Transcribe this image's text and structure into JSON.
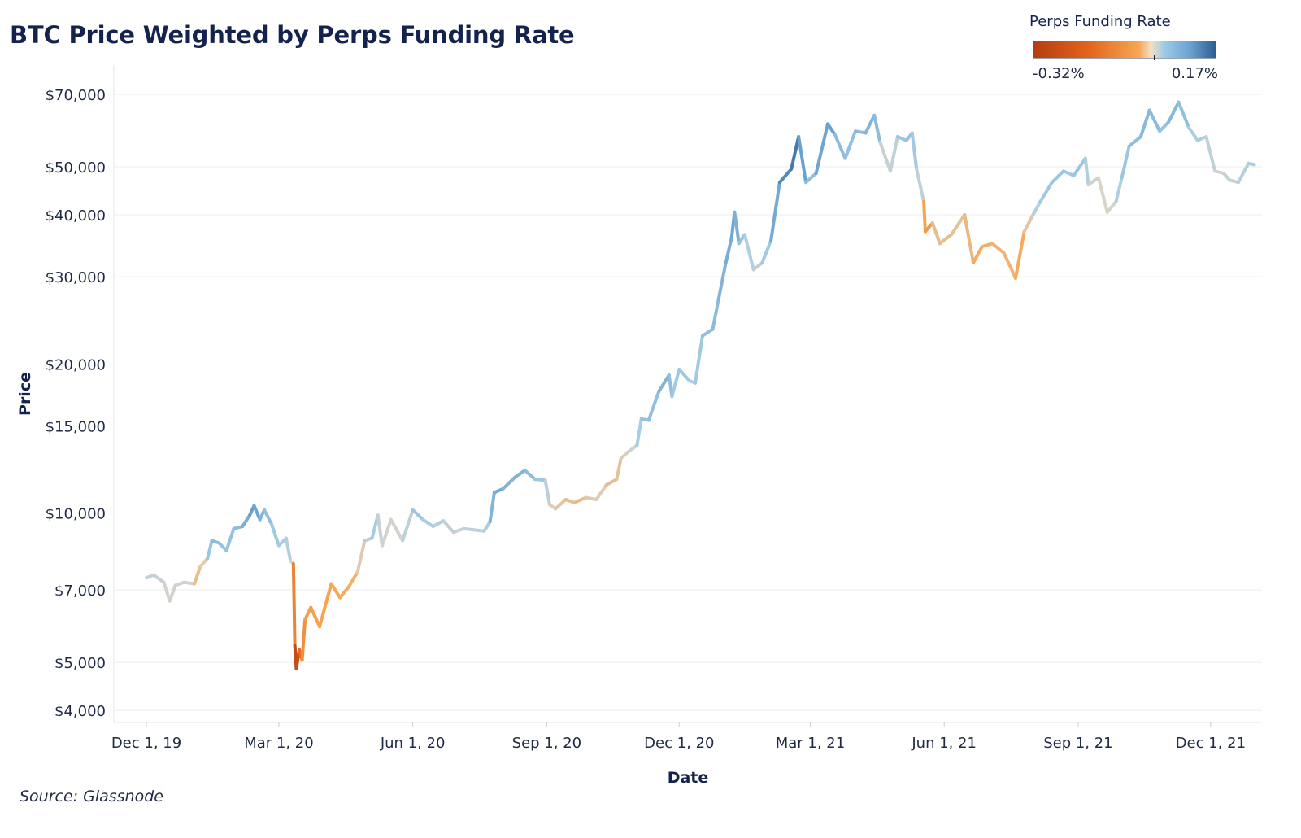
{
  "title": "BTC Price Weighted by Perps Funding Rate",
  "source": "Source: Glassnode",
  "legend": {
    "title": "Perps Funding Rate",
    "min_label": "-0.32%",
    "max_label": "0.17%",
    "min": -0.32,
    "max": 0.17,
    "colors": [
      "#b53d12",
      "#e1651c",
      "#f7a653",
      "#f3e0c6",
      "#9ccae6",
      "#6aa2cf",
      "#2d5c91"
    ]
  },
  "chart_data": {
    "type": "line",
    "title": "BTC Price Weighted by Perps Funding Rate",
    "xlabel": "Date",
    "ylabel": "Price",
    "y_scale": "log",
    "ylim": [
      3800,
      90000
    ],
    "xlim": [
      "2019-12-01",
      "2022-01-31"
    ],
    "grid": "horizontal",
    "legend_position": "top-right",
    "x_ticks": [
      {
        "date": "2019-12-01",
        "label": "Dec 1, 19"
      },
      {
        "date": "2020-03-01",
        "label": "Mar 1, 20"
      },
      {
        "date": "2020-06-01",
        "label": "Jun 1, 20"
      },
      {
        "date": "2020-09-01",
        "label": "Sep 1, 20"
      },
      {
        "date": "2020-12-01",
        "label": "Dec 1, 20"
      },
      {
        "date": "2021-03-01",
        "label": "Mar 1, 21"
      },
      {
        "date": "2021-06-01",
        "label": "Jun 1, 21"
      },
      {
        "date": "2021-09-01",
        "label": "Sep 1, 21"
      },
      {
        "date": "2021-12-01",
        "label": "Dec 1, 21"
      }
    ],
    "y_ticks": [
      {
        "value": 4000,
        "label": "$4,000"
      },
      {
        "value": 5000,
        "label": "$5,000"
      },
      {
        "value": 7000,
        "label": "$7,000"
      },
      {
        "value": 10000,
        "label": "$10,000"
      },
      {
        "value": 15000,
        "label": "$15,000"
      },
      {
        "value": 20000,
        "label": "$20,000"
      },
      {
        "value": 30000,
        "label": "$30,000"
      },
      {
        "value": 40000,
        "label": "$40,000"
      },
      {
        "value": 50000,
        "label": "$50,000"
      },
      {
        "value": 70000,
        "label": "$70,000"
      }
    ],
    "series": [
      {
        "points": [
          {
            "date": "2019-12-01",
            "price": 7400,
            "funding": 0.02
          },
          {
            "date": "2019-12-06",
            "price": 7500,
            "funding": 0.02
          },
          {
            "date": "2019-12-13",
            "price": 7250,
            "funding": 0.01
          },
          {
            "date": "2019-12-17",
            "price": 6650,
            "funding": 0.0
          },
          {
            "date": "2019-12-21",
            "price": 7150,
            "funding": 0.01
          },
          {
            "date": "2019-12-27",
            "price": 7250,
            "funding": 0.01
          },
          {
            "date": "2020-01-03",
            "price": 7200,
            "funding": 0.0
          },
          {
            "date": "2020-01-07",
            "price": 7800,
            "funding": -0.05
          },
          {
            "date": "2020-01-12",
            "price": 8100,
            "funding": 0.03
          },
          {
            "date": "2020-01-15",
            "price": 8800,
            "funding": 0.07
          },
          {
            "date": "2020-01-20",
            "price": 8700,
            "funding": 0.06
          },
          {
            "date": "2020-01-25",
            "price": 8400,
            "funding": 0.05
          },
          {
            "date": "2020-01-30",
            "price": 9300,
            "funding": 0.06
          },
          {
            "date": "2020-02-05",
            "price": 9400,
            "funding": 0.07
          },
          {
            "date": "2020-02-10",
            "price": 9900,
            "funding": 0.1
          },
          {
            "date": "2020-02-13",
            "price": 10350,
            "funding": 0.11
          },
          {
            "date": "2020-02-17",
            "price": 9700,
            "funding": 0.08
          },
          {
            "date": "2020-02-20",
            "price": 10150,
            "funding": 0.07
          },
          {
            "date": "2020-02-25",
            "price": 9500,
            "funding": 0.05
          },
          {
            "date": "2020-03-01",
            "price": 8600,
            "funding": 0.04
          },
          {
            "date": "2020-03-06",
            "price": 8900,
            "funding": 0.04
          },
          {
            "date": "2020-03-09",
            "price": 8000,
            "funding": 0.02
          },
          {
            "date": "2020-03-11",
            "price": 7900,
            "funding": -0.02
          },
          {
            "date": "2020-03-12",
            "price": 5400,
            "funding": -0.22
          },
          {
            "date": "2020-03-13",
            "price": 4850,
            "funding": -0.32
          },
          {
            "date": "2020-03-15",
            "price": 5300,
            "funding": -0.2
          },
          {
            "date": "2020-03-17",
            "price": 5050,
            "funding": -0.12
          },
          {
            "date": "2020-03-19",
            "price": 6100,
            "funding": -0.07
          },
          {
            "date": "2020-03-23",
            "price": 6450,
            "funding": -0.06
          },
          {
            "date": "2020-03-29",
            "price": 5900,
            "funding": -0.06
          },
          {
            "date": "2020-04-06",
            "price": 7200,
            "funding": -0.05
          },
          {
            "date": "2020-04-12",
            "price": 6750,
            "funding": -0.05
          },
          {
            "date": "2020-04-18",
            "price": 7100,
            "funding": -0.04
          },
          {
            "date": "2020-04-24",
            "price": 7600,
            "funding": -0.04
          },
          {
            "date": "2020-04-29",
            "price": 8800,
            "funding": 0.02
          },
          {
            "date": "2020-05-04",
            "price": 8900,
            "funding": 0.03
          },
          {
            "date": "2020-05-08",
            "price": 9900,
            "funding": 0.05
          },
          {
            "date": "2020-05-11",
            "price": 8600,
            "funding": -0.02
          },
          {
            "date": "2020-05-17",
            "price": 9700,
            "funding": 0.03
          },
          {
            "date": "2020-05-25",
            "price": 8800,
            "funding": -0.02
          },
          {
            "date": "2020-06-01",
            "price": 10150,
            "funding": 0.06
          },
          {
            "date": "2020-06-08",
            "price": 9700,
            "funding": 0.04
          },
          {
            "date": "2020-06-15",
            "price": 9400,
            "funding": 0.03
          },
          {
            "date": "2020-06-22",
            "price": 9650,
            "funding": 0.03
          },
          {
            "date": "2020-06-29",
            "price": 9150,
            "funding": 0.01
          },
          {
            "date": "2020-07-06",
            "price": 9300,
            "funding": 0.02
          },
          {
            "date": "2020-07-13",
            "price": 9250,
            "funding": 0.02
          },
          {
            "date": "2020-07-20",
            "price": 9200,
            "funding": 0.02
          },
          {
            "date": "2020-07-24",
            "price": 9600,
            "funding": 0.05
          },
          {
            "date": "2020-07-27",
            "price": 11000,
            "funding": 0.1
          },
          {
            "date": "2020-08-02",
            "price": 11200,
            "funding": 0.08
          },
          {
            "date": "2020-08-10",
            "price": 11800,
            "funding": 0.07
          },
          {
            "date": "2020-08-17",
            "price": 12200,
            "funding": 0.08
          },
          {
            "date": "2020-08-24",
            "price": 11700,
            "funding": 0.05
          },
          {
            "date": "2020-08-31",
            "price": 11650,
            "funding": 0.05
          },
          {
            "date": "2020-09-03",
            "price": 10400,
            "funding": 0.0
          },
          {
            "date": "2020-09-07",
            "price": 10200,
            "funding": -0.01
          },
          {
            "date": "2020-09-14",
            "price": 10650,
            "funding": -0.02
          },
          {
            "date": "2020-09-20",
            "price": 10500,
            "funding": -0.03
          },
          {
            "date": "2020-09-28",
            "price": 10750,
            "funding": -0.02
          },
          {
            "date": "2020-10-05",
            "price": 10650,
            "funding": 0.0
          },
          {
            "date": "2020-10-12",
            "price": 11400,
            "funding": -0.02
          },
          {
            "date": "2020-10-19",
            "price": 11700,
            "funding": -0.03
          },
          {
            "date": "2020-10-22",
            "price": 12900,
            "funding": -0.01
          },
          {
            "date": "2020-10-27",
            "price": 13300,
            "funding": 0.0
          },
          {
            "date": "2020-11-02",
            "price": 13700,
            "funding": 0.02
          },
          {
            "date": "2020-11-05",
            "price": 15500,
            "funding": 0.06
          },
          {
            "date": "2020-11-10",
            "price": 15400,
            "funding": 0.05
          },
          {
            "date": "2020-11-17",
            "price": 17600,
            "funding": 0.07
          },
          {
            "date": "2020-11-24",
            "price": 19000,
            "funding": 0.08
          },
          {
            "date": "2020-11-26",
            "price": 17200,
            "funding": 0.04
          },
          {
            "date": "2020-12-01",
            "price": 19500,
            "funding": 0.05
          },
          {
            "date": "2020-12-08",
            "price": 18500,
            "funding": 0.04
          },
          {
            "date": "2020-12-12",
            "price": 18300,
            "funding": 0.03
          },
          {
            "date": "2020-12-17",
            "price": 22800,
            "funding": 0.06
          },
          {
            "date": "2020-12-24",
            "price": 23500,
            "funding": 0.06
          },
          {
            "date": "2020-12-28",
            "price": 27000,
            "funding": 0.07
          },
          {
            "date": "2021-01-02",
            "price": 32000,
            "funding": 0.08
          },
          {
            "date": "2021-01-06",
            "price": 36000,
            "funding": 0.09
          },
          {
            "date": "2021-01-08",
            "price": 40500,
            "funding": 0.1
          },
          {
            "date": "2021-01-11",
            "price": 35000,
            "funding": 0.06
          },
          {
            "date": "2021-01-15",
            "price": 36500,
            "funding": 0.05
          },
          {
            "date": "2021-01-21",
            "price": 31000,
            "funding": 0.01
          },
          {
            "date": "2021-01-27",
            "price": 32000,
            "funding": 0.03
          },
          {
            "date": "2021-02-02",
            "price": 35500,
            "funding": 0.06
          },
          {
            "date": "2021-02-08",
            "price": 46500,
            "funding": 0.12
          },
          {
            "date": "2021-02-16",
            "price": 49500,
            "funding": 0.13
          },
          {
            "date": "2021-02-21",
            "price": 57500,
            "funding": 0.15
          },
          {
            "date": "2021-02-26",
            "price": 46500,
            "funding": 0.05
          },
          {
            "date": "2021-03-05",
            "price": 48500,
            "funding": 0.07
          },
          {
            "date": "2021-03-13",
            "price": 61000,
            "funding": 0.12
          },
          {
            "date": "2021-03-18",
            "price": 58000,
            "funding": 0.08
          },
          {
            "date": "2021-03-25",
            "price": 52000,
            "funding": 0.05
          },
          {
            "date": "2021-04-01",
            "price": 59000,
            "funding": 0.07
          },
          {
            "date": "2021-04-08",
            "price": 58500,
            "funding": 0.06
          },
          {
            "date": "2021-04-14",
            "price": 63500,
            "funding": 0.09
          },
          {
            "date": "2021-04-18",
            "price": 56000,
            "funding": 0.04
          },
          {
            "date": "2021-04-25",
            "price": 49000,
            "funding": -0.01
          },
          {
            "date": "2021-04-30",
            "price": 57500,
            "funding": 0.05
          },
          {
            "date": "2021-05-06",
            "price": 56500,
            "funding": 0.05
          },
          {
            "date": "2021-05-10",
            "price": 58500,
            "funding": 0.06
          },
          {
            "date": "2021-05-13",
            "price": 49500,
            "funding": 0.03
          },
          {
            "date": "2021-05-18",
            "price": 42500,
            "funding": 0.01
          },
          {
            "date": "2021-05-19",
            "price": 37000,
            "funding": -0.12
          },
          {
            "date": "2021-05-24",
            "price": 38500,
            "funding": -0.03
          },
          {
            "date": "2021-05-29",
            "price": 35000,
            "funding": -0.02
          },
          {
            "date": "2021-06-06",
            "price": 36500,
            "funding": -0.03
          },
          {
            "date": "2021-06-15",
            "price": 40000,
            "funding": -0.01
          },
          {
            "date": "2021-06-21",
            "price": 32000,
            "funding": -0.05
          },
          {
            "date": "2021-06-27",
            "price": 34500,
            "funding": -0.04
          },
          {
            "date": "2021-07-04",
            "price": 35000,
            "funding": -0.04
          },
          {
            "date": "2021-07-12",
            "price": 33500,
            "funding": -0.03
          },
          {
            "date": "2021-07-20",
            "price": 29800,
            "funding": -0.04
          },
          {
            "date": "2021-07-26",
            "price": 37000,
            "funding": -0.05
          },
          {
            "date": "2021-08-01",
            "price": 40000,
            "funding": 0.02
          },
          {
            "date": "2021-08-06",
            "price": 42500,
            "funding": 0.04
          },
          {
            "date": "2021-08-14",
            "price": 46500,
            "funding": 0.05
          },
          {
            "date": "2021-08-22",
            "price": 49000,
            "funding": 0.05
          },
          {
            "date": "2021-08-29",
            "price": 48000,
            "funding": 0.04
          },
          {
            "date": "2021-09-06",
            "price": 52000,
            "funding": 0.06
          },
          {
            "date": "2021-09-08",
            "price": 46000,
            "funding": 0.0
          },
          {
            "date": "2021-09-15",
            "price": 47500,
            "funding": 0.02
          },
          {
            "date": "2021-09-21",
            "price": 40500,
            "funding": -0.02
          },
          {
            "date": "2021-09-27",
            "price": 42500,
            "funding": 0.02
          },
          {
            "date": "2021-10-01",
            "price": 47500,
            "funding": 0.04
          },
          {
            "date": "2021-10-06",
            "price": 55000,
            "funding": 0.06
          },
          {
            "date": "2021-10-14",
            "price": 57500,
            "funding": 0.06
          },
          {
            "date": "2021-10-20",
            "price": 65000,
            "funding": 0.08
          },
          {
            "date": "2021-10-27",
            "price": 59000,
            "funding": 0.05
          },
          {
            "date": "2021-11-02",
            "price": 61500,
            "funding": 0.06
          },
          {
            "date": "2021-11-09",
            "price": 67500,
            "funding": 0.08
          },
          {
            "date": "2021-11-16",
            "price": 60000,
            "funding": 0.04
          },
          {
            "date": "2021-11-22",
            "price": 56500,
            "funding": 0.03
          },
          {
            "date": "2021-11-28",
            "price": 57500,
            "funding": 0.04
          },
          {
            "date": "2021-12-04",
            "price": 49000,
            "funding": 0.0
          },
          {
            "date": "2021-12-10",
            "price": 48500,
            "funding": 0.01
          },
          {
            "date": "2021-12-14",
            "price": 47000,
            "funding": 0.02
          },
          {
            "date": "2021-12-20",
            "price": 46500,
            "funding": 0.01
          },
          {
            "date": "2021-12-27",
            "price": 50800,
            "funding": 0.04
          },
          {
            "date": "2021-12-31",
            "price": 50500,
            "funding": 0.03
          }
        ]
      }
    ]
  }
}
